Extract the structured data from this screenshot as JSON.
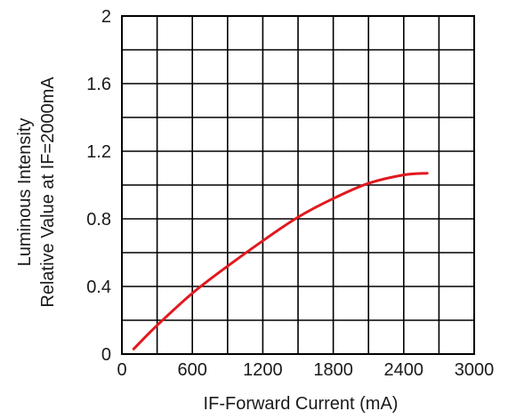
{
  "chart_data": {
    "type": "line",
    "title": "",
    "xlabel": "IF-Forward Current (mA)",
    "ylabel_lines": [
      "Luminous Intensity",
      "Relative Value at IF=2000mA"
    ],
    "xlim": [
      0,
      3000
    ],
    "ylim": [
      0,
      2
    ],
    "x_ticks": [
      0,
      600,
      1200,
      1800,
      2400,
      3000
    ],
    "y_ticks": [
      0,
      0.4,
      0.8,
      1.2,
      1.6,
      2
    ],
    "x_tick_labels": [
      "0",
      "600",
      "1200",
      "1800",
      "2400",
      "3000"
    ],
    "y_tick_labels": [
      "0",
      "0.4",
      "0.8",
      "1.2",
      "1.6",
      "2"
    ],
    "grid": true,
    "line_color": "#e0191f",
    "series": [
      {
        "x": [
          100,
          300,
          600,
          900,
          1200,
          1500,
          1800,
          2100,
          2400,
          2600
        ],
        "y": [
          0.03,
          0.17,
          0.36,
          0.52,
          0.67,
          0.81,
          0.92,
          1.01,
          1.06,
          1.07
        ]
      }
    ]
  }
}
